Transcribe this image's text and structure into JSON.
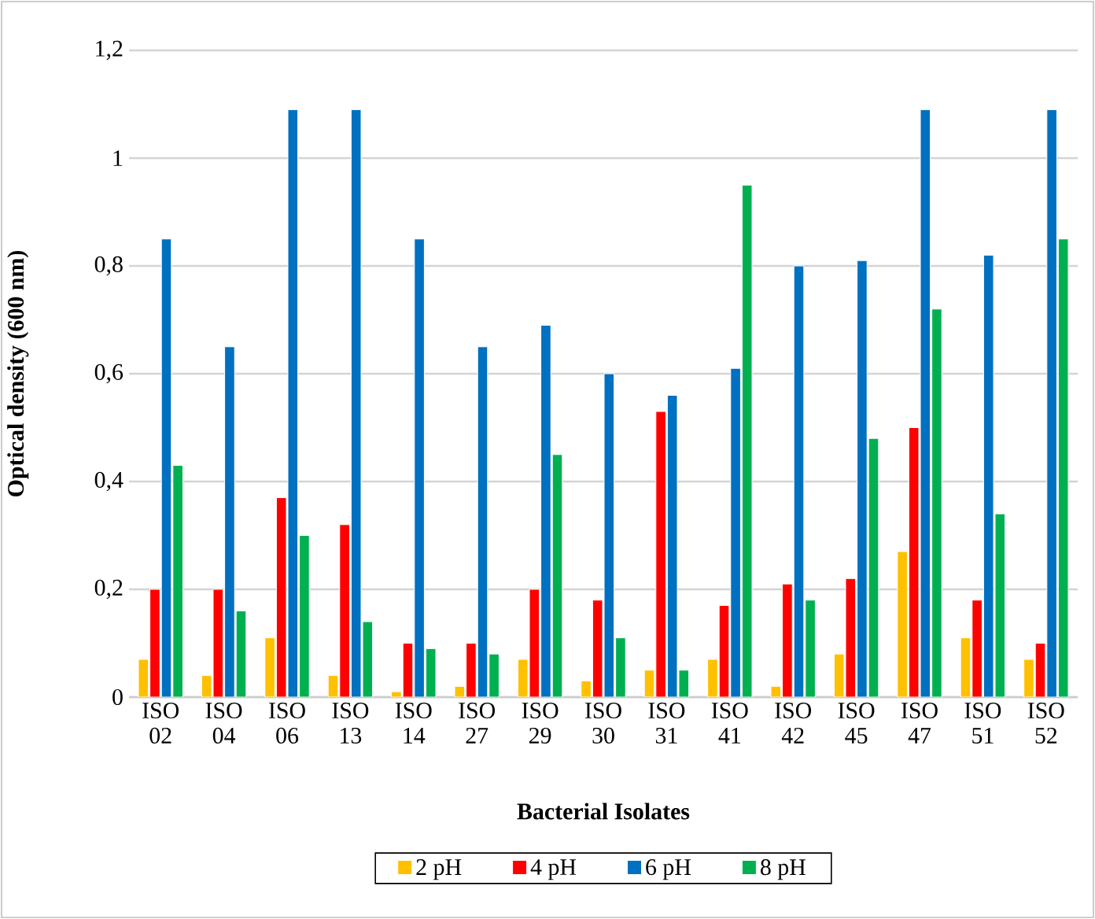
{
  "chart_data": {
    "type": "bar",
    "xlabel": "Bacterial Isolates",
    "ylabel": "Optical density (600 nm)",
    "categories": [
      "ISO 02",
      "ISO 04",
      "ISO 06",
      "ISO 13",
      "ISO 14",
      "ISO 27",
      "ISO 29",
      "ISO 30",
      "ISO 31",
      "ISO 41",
      "ISO 42",
      "ISO 45",
      "ISO 47",
      "ISO 51",
      "ISO 52"
    ],
    "series": [
      {
        "name": "2 pH",
        "color": "#ffc000",
        "values": [
          0.07,
          0.04,
          0.11,
          0.04,
          0.01,
          0.02,
          0.07,
          0.03,
          0.05,
          0.07,
          0.02,
          0.08,
          0.27,
          0.11,
          0.07
        ]
      },
      {
        "name": "4 pH",
        "color": "#ff0000",
        "values": [
          0.2,
          0.2,
          0.37,
          0.32,
          0.1,
          0.1,
          0.2,
          0.18,
          0.53,
          0.17,
          0.21,
          0.22,
          0.5,
          0.18,
          0.1
        ]
      },
      {
        "name": "6 pH",
        "color": "#0070c0",
        "values": [
          0.85,
          0.65,
          1.09,
          1.09,
          0.85,
          0.65,
          0.69,
          0.6,
          0.56,
          0.61,
          0.8,
          0.81,
          1.09,
          0.82,
          1.09
        ]
      },
      {
        "name": "8 pH",
        "color": "#00b050",
        "values": [
          0.43,
          0.16,
          0.3,
          0.14,
          0.09,
          0.08,
          0.45,
          0.11,
          0.05,
          0.95,
          0.18,
          0.48,
          0.72,
          0.34,
          0.85
        ]
      }
    ],
    "ylim": [
      0,
      1.2
    ],
    "yticks": [
      0,
      {
        "value": 0.2,
        "label": "0,2"
      },
      {
        "value": 0.4,
        "label": "0,4"
      },
      {
        "value": 0.6,
        "label": "0,6"
      },
      {
        "value": 0.8,
        "label": "0,8"
      },
      1,
      {
        "value": 1.2,
        "label": "1,2"
      }
    ],
    "grid": "y",
    "legend": "bottom"
  }
}
